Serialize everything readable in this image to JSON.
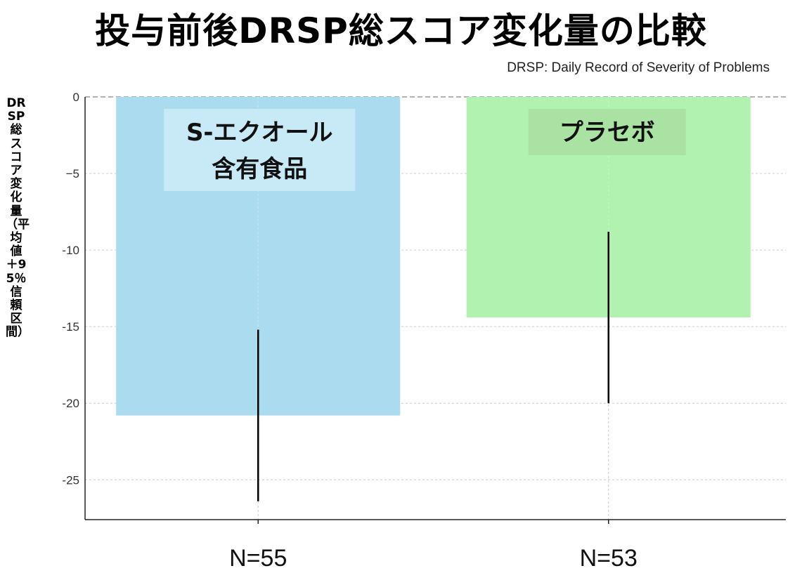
{
  "title": "投与前後DRSP総スコア変化量の比較",
  "subtitle": "DRSP: Daily Record of Severity of Problems",
  "colors": {
    "bar1": "#abdbef",
    "bar2": "#b2f2b0",
    "label_box1": "#c8e9f6",
    "label_box2": "#a9e2a3",
    "error_bar": "#000000",
    "grid": "#cccccc",
    "zero_line": "#999999"
  },
  "chart_data": {
    "type": "bar",
    "title": "投与前後DRSP総スコア変化量の比較",
    "subtitle": "DRSP: Daily Record of Severity of Problems",
    "ylabel": "DRSP総スコア変化量（平均値 ＋95％信頼区間）",
    "xlabel": "",
    "ylim": [
      -27.6,
      0
    ],
    "yticks": [
      0,
      -5,
      -10,
      -15,
      -20,
      -25
    ],
    "ytick_labels": [
      "0",
      "−5",
      "-10",
      "-15",
      "-20",
      "-25"
    ],
    "grid": true,
    "categories": [
      {
        "label_lines": [
          "S-エクオール",
          "含有食品"
        ],
        "n_label": "N=55",
        "value": -20.8,
        "ci_low": -26.4,
        "ci_high": -15.2
      },
      {
        "label_lines": [
          "プラセボ"
        ],
        "n_label": "N=53",
        "value": -14.4,
        "ci_low": -20.0,
        "ci_high": -8.8
      }
    ]
  }
}
